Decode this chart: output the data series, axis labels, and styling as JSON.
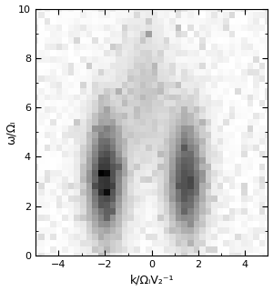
{
  "xlim": [
    -5,
    5
  ],
  "ylim": [
    0,
    10
  ],
  "xticks": [
    -4,
    -2,
    0,
    2,
    4
  ],
  "yticks": [
    0,
    2,
    4,
    6,
    8,
    10
  ],
  "xlabel": "k/ΩᵢV₂⁻¹",
  "ylabel": "ω/Ωᵢ",
  "figsize": [
    3.0,
    3.2
  ],
  "dpi": 100,
  "background_color": "#ffffff",
  "colormap": "gray_r",
  "n_k": 40,
  "n_omega": 40,
  "k_range": [
    -5,
    5
  ],
  "omega_range": [
    0,
    10
  ],
  "band1_k": -2.0,
  "band2_k": 1.5,
  "band_k_sigma": 0.55,
  "omega_peak": 3.0,
  "omega_sigma_up": 1.8,
  "omega_sigma_down": 1.5,
  "faint_band_k": -0.3,
  "faint_band_k_sigma": 0.7,
  "faint_band_omega_peak": 6.5,
  "faint_band_omega_sigma": 2.0,
  "faint_band_amp": 0.25,
  "noise_base": 0.04,
  "noise_seed": 42,
  "scatter_seed": 123,
  "n_scatter": 120,
  "scatter_max": 0.15
}
